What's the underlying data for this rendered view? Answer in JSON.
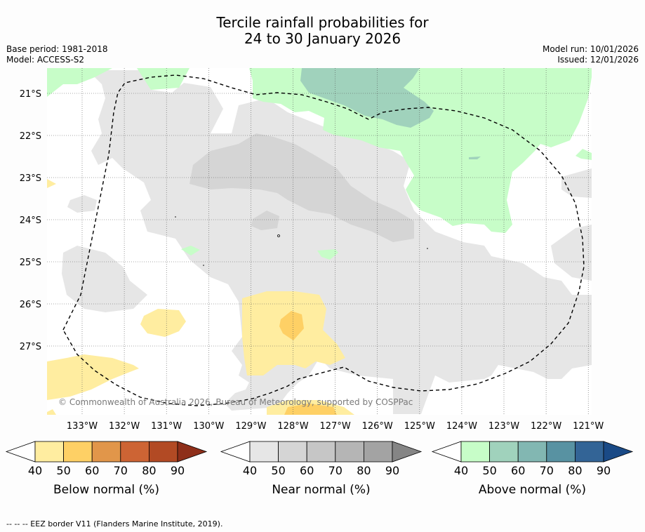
{
  "header": {
    "title_line1": "Tercile rainfall probabilities for",
    "title_line2": "24 to 30 January 2026",
    "base_period": "Base period: 1981-2018",
    "model": "Model: ACCESS-S2",
    "model_run": "Model run: 10/01/2026",
    "issued": "Issued: 12/01/2026"
  },
  "map": {
    "lon_labels": [
      "133°W",
      "132°W",
      "131°W",
      "130°W",
      "129°W",
      "128°W",
      "127°W",
      "126°W",
      "125°W",
      "124°W",
      "123°W",
      "122°W",
      "121°W"
    ],
    "lat_labels": [
      "21°S",
      "22°S",
      "23°S",
      "24°S",
      "25°S",
      "26°S",
      "27°S"
    ],
    "copyright": "© Commonwealth of Australia 2026, Bureau of Meteorology, supported by COSPPac",
    "colors": {
      "below_40": "#ffeda0",
      "below_50": "#fed065",
      "near_40": "#e6e6e6",
      "near_50": "#d5d5d5",
      "above_40": "#c7fdc8",
      "above_50": "#a0d2bc",
      "eez": "#000000"
    }
  },
  "colorbars": [
    {
      "title": "Below normal (%)",
      "ticks": [
        "40",
        "50",
        "60",
        "70",
        "80",
        "90"
      ],
      "colors": [
        "#ffeda0",
        "#fed065",
        "#e1964a",
        "#cd6434",
        "#b24a24",
        "#8e2f1a"
      ]
    },
    {
      "title": "Near normal (%)",
      "ticks": [
        "40",
        "50",
        "60",
        "70",
        "80",
        "90"
      ],
      "colors": [
        "#e6e6e6",
        "#d5d5d5",
        "#c6c6c6",
        "#b5b5b5",
        "#a3a3a3",
        "#858585"
      ]
    },
    {
      "title": "Above normal (%)",
      "ticks": [
        "40",
        "50",
        "60",
        "70",
        "80",
        "90"
      ],
      "colors": [
        "#c7fdc8",
        "#a0d2bc",
        "#82b7b2",
        "#5892a2",
        "#336496",
        "#1a4a86"
      ]
    }
  ],
  "footer": {
    "legend_line": "--  --  -- EEZ border V11 (Flanders Marine Institute, 2019)."
  }
}
